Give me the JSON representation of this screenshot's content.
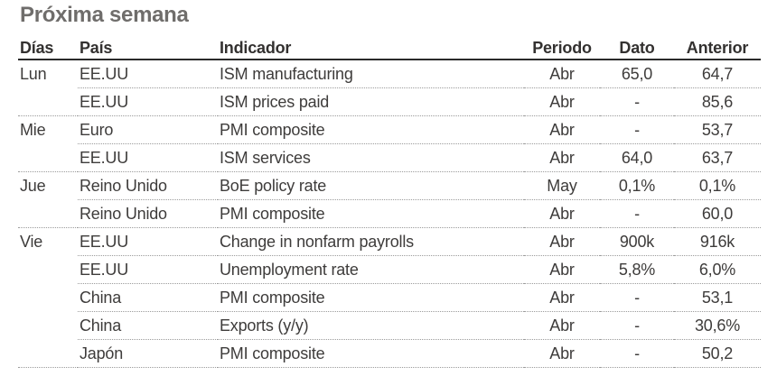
{
  "title": "Próxima semana",
  "table": {
    "columns": [
      {
        "label": "Días"
      },
      {
        "label": "País"
      },
      {
        "label": "Indicador"
      },
      {
        "label": "Periodo"
      },
      {
        "label": "Dato"
      },
      {
        "label": "Anterior"
      }
    ],
    "rows": [
      {
        "dia": "Lun",
        "pais": "EE.UU",
        "indicador": "ISM manufacturing",
        "periodo": "Abr",
        "dato": "65,0",
        "anterior": "64,7"
      },
      {
        "dia": "",
        "pais": "EE.UU",
        "indicador": "ISM prices paid",
        "periodo": "Abr",
        "dato": "-",
        "anterior": "85,6"
      },
      {
        "dia": "Mie",
        "pais": "Euro",
        "indicador": "PMI composite",
        "periodo": "Abr",
        "dato": "-",
        "anterior": "53,7"
      },
      {
        "dia": "",
        "pais": "EE.UU",
        "indicador": "ISM services",
        "periodo": "Abr",
        "dato": "64,0",
        "anterior": "63,7"
      },
      {
        "dia": "Jue",
        "pais": "Reino Unido",
        "indicador": "BoE policy rate",
        "periodo": "May",
        "dato": "0,1%",
        "anterior": "0,1%"
      },
      {
        "dia": "",
        "pais": "Reino Unido",
        "indicador": "PMI composite",
        "periodo": "Abr",
        "dato": "-",
        "anterior": "60,0"
      },
      {
        "dia": "Vie",
        "pais": "EE.UU",
        "indicador": "Change in nonfarm payrolls",
        "periodo": "Abr",
        "dato": "900k",
        "anterior": "916k"
      },
      {
        "dia": "",
        "pais": "EE.UU",
        "indicador": "Unemployment rate",
        "periodo": "Abr",
        "dato": "5,8%",
        "anterior": "6,0%"
      },
      {
        "dia": "",
        "pais": "China",
        "indicador": "PMI composite",
        "periodo": "Abr",
        "dato": "-",
        "anterior": "53,1"
      },
      {
        "dia": "",
        "pais": "China",
        "indicador": "Exports (y/y)",
        "periodo": "Abr",
        "dato": "-",
        "anterior": "30,6%"
      },
      {
        "dia": "",
        "pais": "Japón",
        "indicador": "PMI composite",
        "periodo": "Abr",
        "dato": "-",
        "anterior": "50,2"
      }
    ]
  },
  "colors": {
    "background": "#ffffff",
    "title_text": "#6f6d6b",
    "header_text": "#333130",
    "body_text": "#3e3c3b",
    "header_rule": "#2a2a2a",
    "row_divider": "#9b9b9b"
  },
  "chart_data": {
    "type": "table",
    "title": "Próxima semana",
    "columns": [
      "Días",
      "País",
      "Indicador",
      "Periodo",
      "Dato",
      "Anterior"
    ],
    "rows": [
      [
        "Lun",
        "EE.UU",
        "ISM manufacturing",
        "Abr",
        "65,0",
        "64,7"
      ],
      [
        "",
        "EE.UU",
        "ISM prices paid",
        "Abr",
        "-",
        "85,6"
      ],
      [
        "Mie",
        "Euro",
        "PMI composite",
        "Abr",
        "-",
        "53,7"
      ],
      [
        "",
        "EE.UU",
        "ISM services",
        "Abr",
        "64,0",
        "63,7"
      ],
      [
        "Jue",
        "Reino Unido",
        "BoE policy rate",
        "May",
        "0,1%",
        "0,1%"
      ],
      [
        "",
        "Reino Unido",
        "PMI composite",
        "Abr",
        "-",
        "60,0"
      ],
      [
        "Vie",
        "EE.UU",
        "Change in nonfarm payrolls",
        "Abr",
        "900k",
        "916k"
      ],
      [
        "",
        "EE.UU",
        "Unemployment rate",
        "Abr",
        "5,8%",
        "6,0%"
      ],
      [
        "",
        "China",
        "PMI composite",
        "Abr",
        "-",
        "53,1"
      ],
      [
        "",
        "China",
        "Exports (y/y)",
        "Abr",
        "-",
        "30,6%"
      ],
      [
        "",
        "Japón",
        "PMI composite",
        "Abr",
        "-",
        "50,2"
      ]
    ]
  }
}
